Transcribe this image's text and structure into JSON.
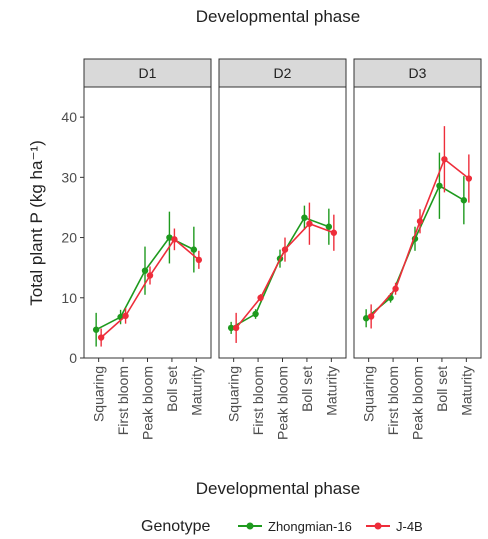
{
  "chart_data": {
    "type": "line",
    "title": "Developmental phase",
    "xlabel": "Developmental phase",
    "ylabel": "Total plant P (kg ha⁻¹)",
    "ylim": [
      0,
      45
    ],
    "y_ticks": [
      "0",
      "10",
      "20",
      "30",
      "40"
    ],
    "categories": [
      "Squaring",
      "First bloom",
      "Peak bloom",
      "Boll set",
      "Maturity"
    ],
    "grid": false,
    "legend_title": "Genotype",
    "legend_position": "bottom",
    "panels": [
      {
        "label": "D1",
        "series": [
          {
            "name": "Zhongmian-16",
            "values": [
              4.7,
              6.8,
              14.5,
              20.0,
              18.0
            ],
            "err": [
              2.8,
              1.2,
              4.0,
              4.3,
              3.8
            ]
          },
          {
            "name": "J-4B",
            "values": [
              3.4,
              7.0,
              13.7,
              19.7,
              16.3
            ],
            "err": [
              1.5,
              1.3,
              1.5,
              1.8,
              1.5
            ]
          }
        ]
      },
      {
        "label": "D2",
        "series": [
          {
            "name": "Zhongmian-16",
            "values": [
              5.0,
              7.3,
              16.5,
              23.3,
              21.8
            ],
            "err": [
              1.0,
              0.8,
              1.5,
              2.0,
              3.0
            ]
          },
          {
            "name": "J-4B",
            "values": [
              5.0,
              10.0,
              18.0,
              22.3,
              20.8
            ],
            "err": [
              2.5,
              0.6,
              2.0,
              3.5,
              3.0
            ]
          }
        ]
      },
      {
        "label": "D3",
        "series": [
          {
            "name": "Zhongmian-16",
            "values": [
              6.6,
              10.0,
              19.8,
              28.6,
              26.2
            ],
            "err": [
              1.5,
              0.8,
              2.0,
              5.5,
              4.0
            ]
          },
          {
            "name": "J-4B",
            "values": [
              6.9,
              11.5,
              22.7,
              33.0,
              29.8
            ],
            "err": [
              2.0,
              1.0,
              2.0,
              5.5,
              4.0
            ]
          }
        ]
      }
    ]
  },
  "colors": {
    "Zhongmian-16": "#1e9a1e",
    "J-4B": "#ee2d3a",
    "strip_fill": "#d9d9d9",
    "axis_text": "#4d4d4d"
  }
}
